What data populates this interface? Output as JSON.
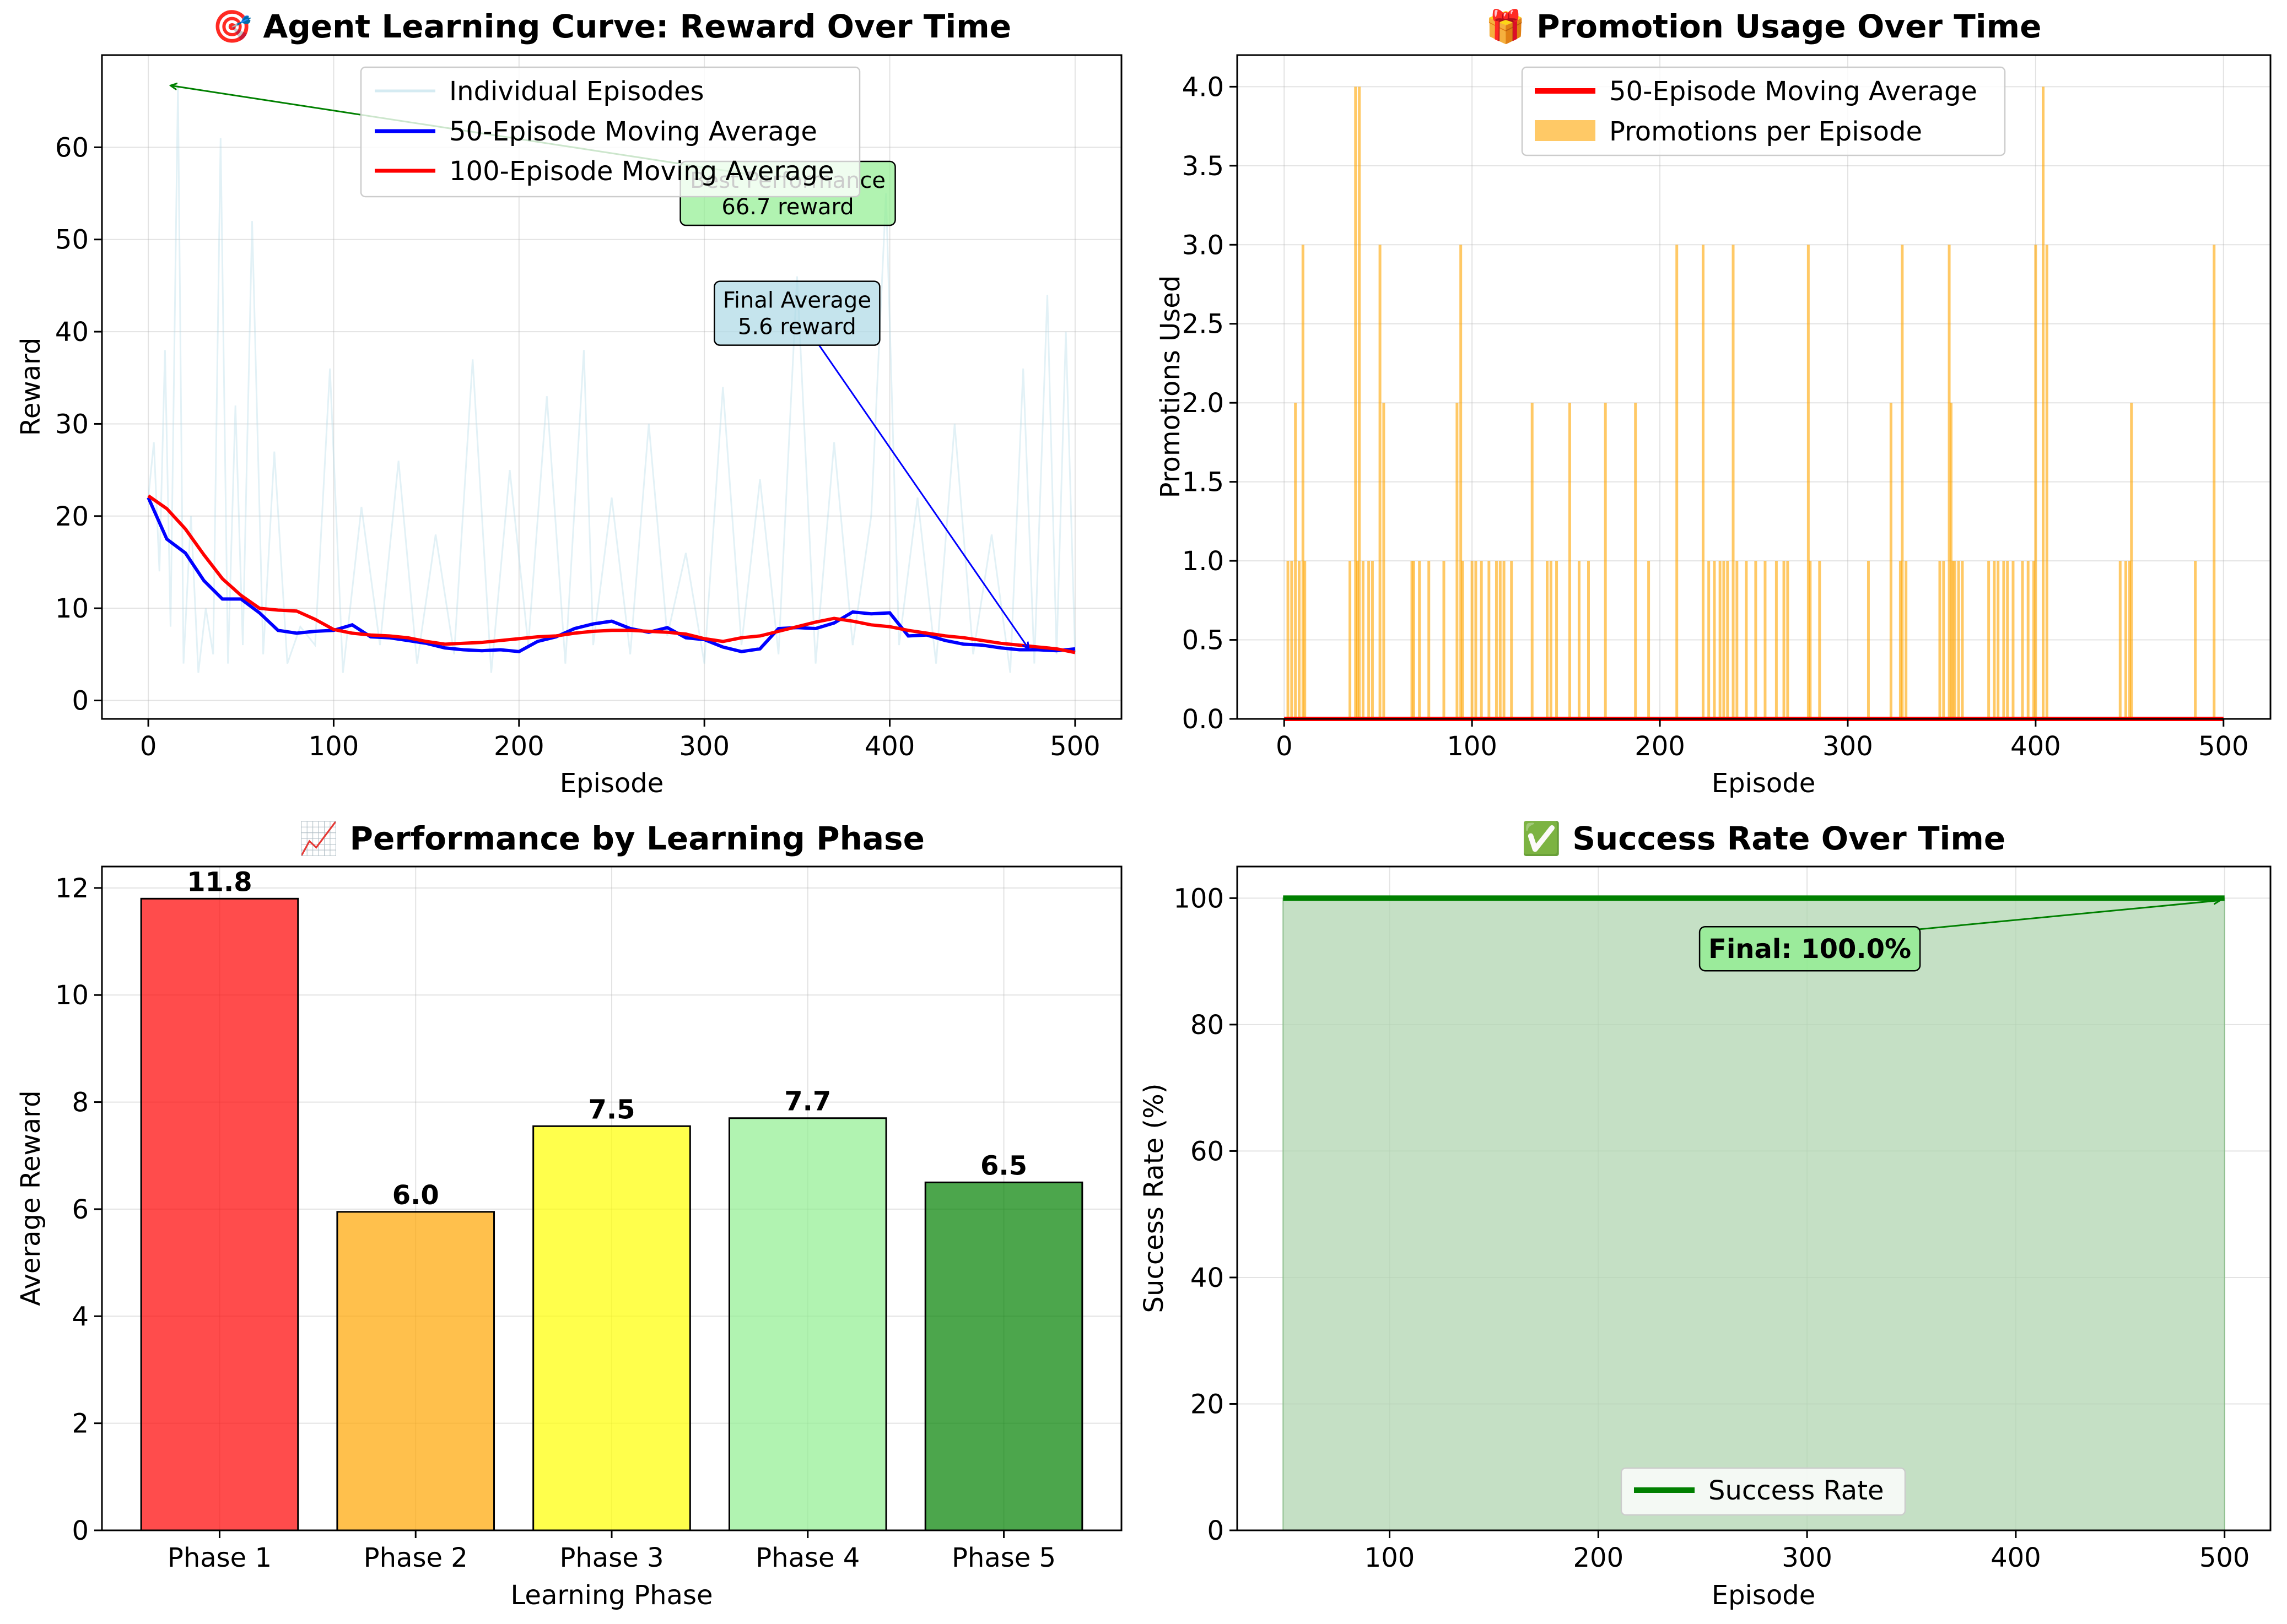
{
  "chart_data": [
    {
      "type": "line",
      "title": "🎯 Agent Learning Curve: Reward Over Time",
      "xlabel": "Episode",
      "ylabel": "Reward",
      "xlim": [
        -25,
        525
      ],
      "ylim": [
        -2,
        70
      ],
      "xticks": [
        0,
        100,
        200,
        300,
        400,
        500
      ],
      "yticks": [
        0,
        10,
        20,
        30,
        40,
        50,
        60
      ],
      "grid": true,
      "legend_position": "upper-center",
      "colors": {
        "episodes": "#add8e6",
        "ma50": "#0000ff",
        "ma100": "#ff0000"
      },
      "series": [
        {
          "name": "Individual Episodes",
          "x": [
            0,
            3,
            6,
            9,
            12,
            16,
            19,
            23,
            27,
            31,
            35,
            39,
            43,
            47,
            51,
            56,
            62,
            68,
            75,
            82,
            90,
            98,
            105,
            115,
            125,
            135,
            145,
            155,
            165,
            175,
            185,
            195,
            205,
            215,
            225,
            235,
            240,
            250,
            260,
            270,
            280,
            290,
            300,
            310,
            320,
            330,
            340,
            350,
            360,
            370,
            380,
            390,
            398,
            405,
            415,
            425,
            435,
            445,
            455,
            465,
            472,
            478,
            485,
            490,
            495,
            500
          ],
          "values": [
            22,
            28,
            14,
            38,
            8,
            66.7,
            4,
            20,
            3,
            10,
            5,
            61,
            4,
            32,
            6,
            52,
            5,
            27,
            4,
            8,
            6,
            36,
            3,
            21,
            6,
            26,
            4,
            18,
            5,
            37,
            3,
            25,
            6,
            33,
            4,
            38,
            6,
            22,
            5,
            30,
            7,
            16,
            4,
            34,
            6,
            24,
            5,
            46,
            4,
            28,
            6,
            20,
            55,
            6,
            22,
            4,
            30,
            5,
            18,
            3,
            36,
            4,
            44,
            5,
            40,
            5
          ]
        },
        {
          "name": "50-Episode Moving Average",
          "x": [
            0,
            10,
            20,
            30,
            40,
            50,
            60,
            70,
            80,
            90,
            100,
            110,
            120,
            130,
            140,
            150,
            160,
            170,
            180,
            190,
            200,
            210,
            220,
            230,
            240,
            250,
            260,
            270,
            280,
            290,
            300,
            310,
            320,
            330,
            340,
            350,
            360,
            370,
            380,
            390,
            400,
            410,
            420,
            430,
            440,
            450,
            460,
            470,
            480,
            490,
            500
          ],
          "values": [
            22,
            17.5,
            16,
            13,
            11,
            11,
            9.5,
            7.6,
            7.3,
            7.5,
            7.6,
            8.2,
            6.9,
            6.8,
            6.5,
            6.2,
            5.7,
            5.5,
            5.4,
            5.5,
            5.3,
            6.4,
            6.9,
            7.8,
            8.3,
            8.6,
            7.8,
            7.4,
            7.9,
            6.8,
            6.6,
            5.8,
            5.3,
            5.6,
            7.8,
            7.9,
            7.8,
            8.4,
            9.6,
            9.4,
            9.5,
            7.0,
            7.1,
            6.5,
            6.1,
            6.0,
            5.7,
            5.5,
            5.5,
            5.4,
            5.6
          ]
        },
        {
          "name": "100-Episode Moving Average",
          "x": [
            0,
            10,
            20,
            30,
            40,
            50,
            60,
            70,
            80,
            90,
            100,
            110,
            120,
            130,
            140,
            150,
            160,
            170,
            180,
            190,
            200,
            210,
            220,
            230,
            240,
            250,
            260,
            270,
            280,
            290,
            300,
            310,
            320,
            330,
            340,
            350,
            360,
            370,
            380,
            390,
            400,
            410,
            420,
            430,
            440,
            450,
            460,
            470,
            480,
            490,
            500
          ],
          "values": [
            22.2,
            20.8,
            18.6,
            15.8,
            13.2,
            11.4,
            10.0,
            9.8,
            9.7,
            8.8,
            7.7,
            7.3,
            7.1,
            7.0,
            6.8,
            6.4,
            6.1,
            6.2,
            6.3,
            6.5,
            6.7,
            6.9,
            7.0,
            7.3,
            7.5,
            7.6,
            7.6,
            7.5,
            7.4,
            7.2,
            6.7,
            6.4,
            6.8,
            7.0,
            7.5,
            8.0,
            8.5,
            8.9,
            8.6,
            8.2,
            8.0,
            7.6,
            7.3,
            7.0,
            6.8,
            6.5,
            6.2,
            6.0,
            5.8,
            5.6,
            5.2
          ]
        }
      ],
      "annotations": [
        {
          "text_lines": [
            "Best Performance",
            "66.7 reward"
          ],
          "x": 12,
          "y": 66.7,
          "text_x": 345,
          "text_y": 55
        },
        {
          "text_lines": [
            "Final Average",
            "5.6 reward"
          ],
          "x": 475,
          "y": 5.6,
          "text_x": 350,
          "text_y": 42
        }
      ]
    },
    {
      "type": "bar",
      "title": "🎁 Promotion Usage Over Time",
      "xlabel": "Episode",
      "ylabel": "Promotions Used",
      "xlim": [
        -25,
        525
      ],
      "ylim": [
        0,
        4.2
      ],
      "xticks": [
        0,
        100,
        200,
        300,
        400,
        500
      ],
      "yticks": [
        "0.0",
        "0.5",
        "1.0",
        "1.5",
        "2.0",
        "2.5",
        "3.0",
        "3.5",
        "4.0"
      ],
      "grid": true,
      "legend_position": "upper-center",
      "colors": {
        "bars": "#ffa500",
        "ma": "#ff0000"
      },
      "legend": [
        "50-Episode Moving Average",
        "Promotions per Episode"
      ],
      "promotions": {
        "episodes": [
          2,
          4,
          6,
          8,
          10,
          11,
          35,
          38,
          39,
          40,
          42,
          45,
          47,
          51,
          53,
          68,
          69,
          72,
          77,
          85,
          92,
          94,
          95,
          100,
          102,
          105,
          109,
          113,
          115,
          117,
          121,
          132,
          140,
          142,
          145,
          152,
          157,
          162,
          171,
          187,
          194,
          209,
          223,
          226,
          229,
          232,
          234,
          236,
          239,
          241,
          246,
          251,
          256,
          262,
          266,
          268,
          279,
          280,
          285,
          311,
          323,
          328,
          329,
          331,
          349,
          351,
          354,
          355,
          356,
          357,
          359,
          361,
          375,
          378,
          380,
          383,
          385,
          388,
          393,
          396,
          399,
          400,
          404,
          406,
          445,
          448,
          450,
          451,
          485,
          495
        ],
        "values": [
          1,
          1,
          2,
          1,
          3,
          1,
          1,
          4,
          1,
          4,
          1,
          1,
          1,
          3,
          2,
          1,
          1,
          1,
          1,
          1,
          2,
          3,
          1,
          1,
          1,
          1,
          1,
          1,
          1,
          1,
          1,
          2,
          1,
          1,
          1,
          2,
          1,
          1,
          2,
          2,
          1,
          3,
          3,
          1,
          1,
          1,
          1,
          1,
          3,
          1,
          1,
          1,
          1,
          1,
          1,
          1,
          3,
          1,
          1,
          1,
          2,
          1,
          3,
          1,
          1,
          1,
          3,
          2,
          1,
          1,
          1,
          1,
          1,
          1,
          1,
          1,
          1,
          1,
          1,
          1,
          1,
          3,
          4,
          3,
          1,
          1,
          1,
          2,
          1,
          3
        ]
      },
      "moving_average": {
        "x": [
          0,
          500
        ],
        "values": [
          0,
          0
        ]
      }
    },
    {
      "type": "bar",
      "title": "📈 Performance by Learning Phase",
      "xlabel": "Learning Phase",
      "ylabel": "Average Reward",
      "ylim": [
        0,
        12.4
      ],
      "yticks": [
        0,
        2,
        4,
        6,
        8,
        10,
        12
      ],
      "grid": true,
      "categories": [
        "Phase 1",
        "Phase 2",
        "Phase 3",
        "Phase 4",
        "Phase 5"
      ],
      "values": [
        11.8,
        5.95,
        7.55,
        7.7,
        6.5
      ],
      "labels": [
        "11.8",
        "6.0",
        "7.5",
        "7.7",
        "6.5"
      ],
      "colors": [
        "#ff0000",
        "#ffa500",
        "#ffff00",
        "#90ee90",
        "#008000"
      ]
    },
    {
      "type": "area",
      "title": "✅ Success Rate Over Time",
      "xlabel": "Episode",
      "ylabel": "Success Rate (%)",
      "xlim": [
        27,
        522
      ],
      "ylim": [
        0,
        105
      ],
      "xticks": [
        100,
        200,
        300,
        400,
        500
      ],
      "yticks": [
        0,
        20,
        40,
        60,
        80,
        100
      ],
      "grid": true,
      "legend_position": "lower-center",
      "colors": {
        "line": "#008000",
        "fill": "#b2d6b2"
      },
      "series": [
        {
          "name": "Success Rate",
          "x": [
            49,
            500
          ],
          "values": [
            100,
            100
          ]
        }
      ],
      "annotations": [
        {
          "text": "Final: 100.0%",
          "x": 500,
          "y": 100,
          "text_x": 300,
          "text_y": 92
        }
      ]
    }
  ]
}
